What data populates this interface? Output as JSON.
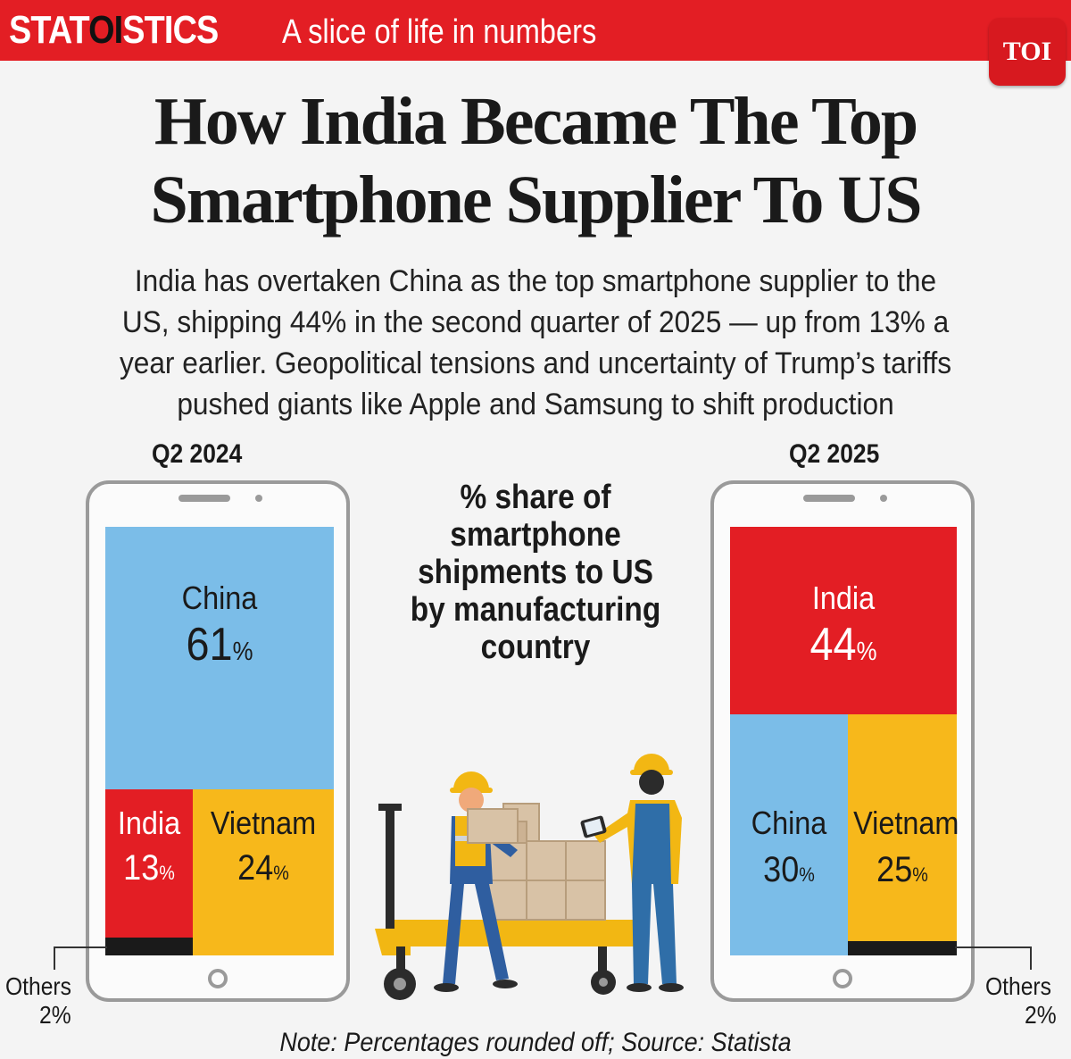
{
  "header": {
    "brand_left": "STAT",
    "brand_mid": "OI",
    "brand_right": "STICS",
    "tagline": "A slice of life in numbers",
    "logo": "TOI"
  },
  "headline_line1": "How India Became The Top",
  "headline_line2": "Smartphone Supplier To US",
  "intro": {
    "line1": "India has overtaken China as the top smartphone supplier to the",
    "line2": "US, shipping 44% in the second quarter of 2025 — up from 13% a",
    "line3": "year earlier. Geopolitical tensions and uncertainty of Trump’s tariffs",
    "line4": "pushed giants like Apple and Samsung to shift production"
  },
  "colors": {
    "china": "#7bbde8",
    "india": "#e31e24",
    "vietnam": "#f7b81b",
    "others": "#1a1a1a"
  },
  "chart_data": [
    {
      "type": "treemap",
      "title": "Q2 2024",
      "unit": "%",
      "categories": [
        "China",
        "India",
        "Vietnam",
        "Others"
      ],
      "values": [
        61,
        13,
        24,
        2
      ],
      "pct_sign": "%",
      "others_label": "Others",
      "others_value": "2%"
    },
    {
      "type": "treemap",
      "title": "Q2 2025",
      "unit": "%",
      "categories": [
        "India",
        "China",
        "Vietnam",
        "Others"
      ],
      "values": [
        44,
        30,
        25,
        2
      ],
      "pct_sign": "%",
      "others_label": "Others",
      "others_value": "2%"
    }
  ],
  "center_title": {
    "line1": "% share of",
    "line2": "smartphone",
    "line3": "shipments to US",
    "line4": "by manufacturing",
    "line5": "country"
  },
  "note": "Note: Percentages rounded off; Source: Statista",
  "illustration": "warehouse-workers-illustration"
}
